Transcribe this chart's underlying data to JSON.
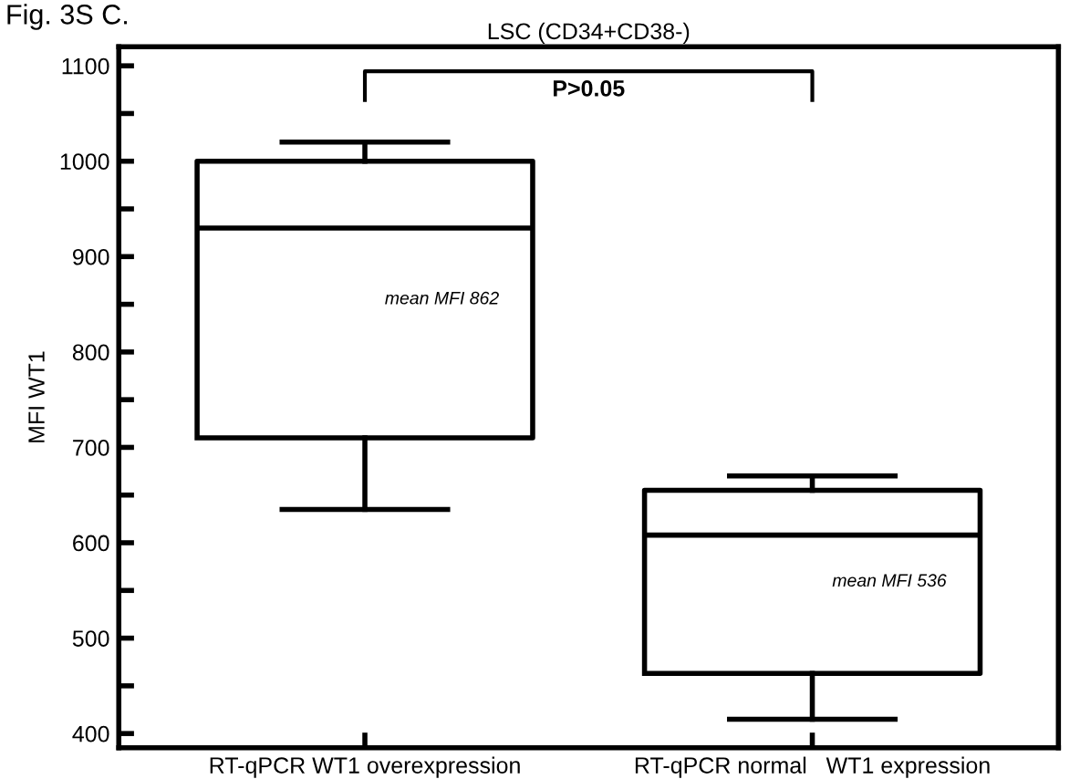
{
  "chart_data": {
    "type": "box",
    "title": "LSC (CD34+CD38-)",
    "ylabel": "MFI WT1",
    "categories": [
      "RT-qPCR WT1 overexpression",
      "RT-qPCR normal   WT1 expression"
    ],
    "boxes": [
      {
        "low": 635,
        "q1": 710,
        "median": 930,
        "q3": 1000,
        "high": 1020
      },
      {
        "low": 415,
        "q1": 463,
        "median": 608,
        "q3": 655,
        "high": 670
      }
    ],
    "ylim": [
      385,
      1120
    ],
    "yticks": [
      400,
      {
        "value": 450,
        "label": null
      },
      500,
      {
        "value": 550,
        "label": null
      },
      600,
      {
        "value": 650,
        "label": null
      },
      700,
      {
        "value": 750,
        "label": null
      },
      800,
      {
        "value": 850,
        "label": null
      },
      900,
      {
        "value": 950,
        "label": null
      },
      1000,
      {
        "value": 1050,
        "label": null
      },
      1100
    ],
    "grid": false,
    "annotations": [
      "Fig. 3S C.",
      "P>0.05",
      "mean MFI 862",
      "mean MFI 536"
    ]
  }
}
